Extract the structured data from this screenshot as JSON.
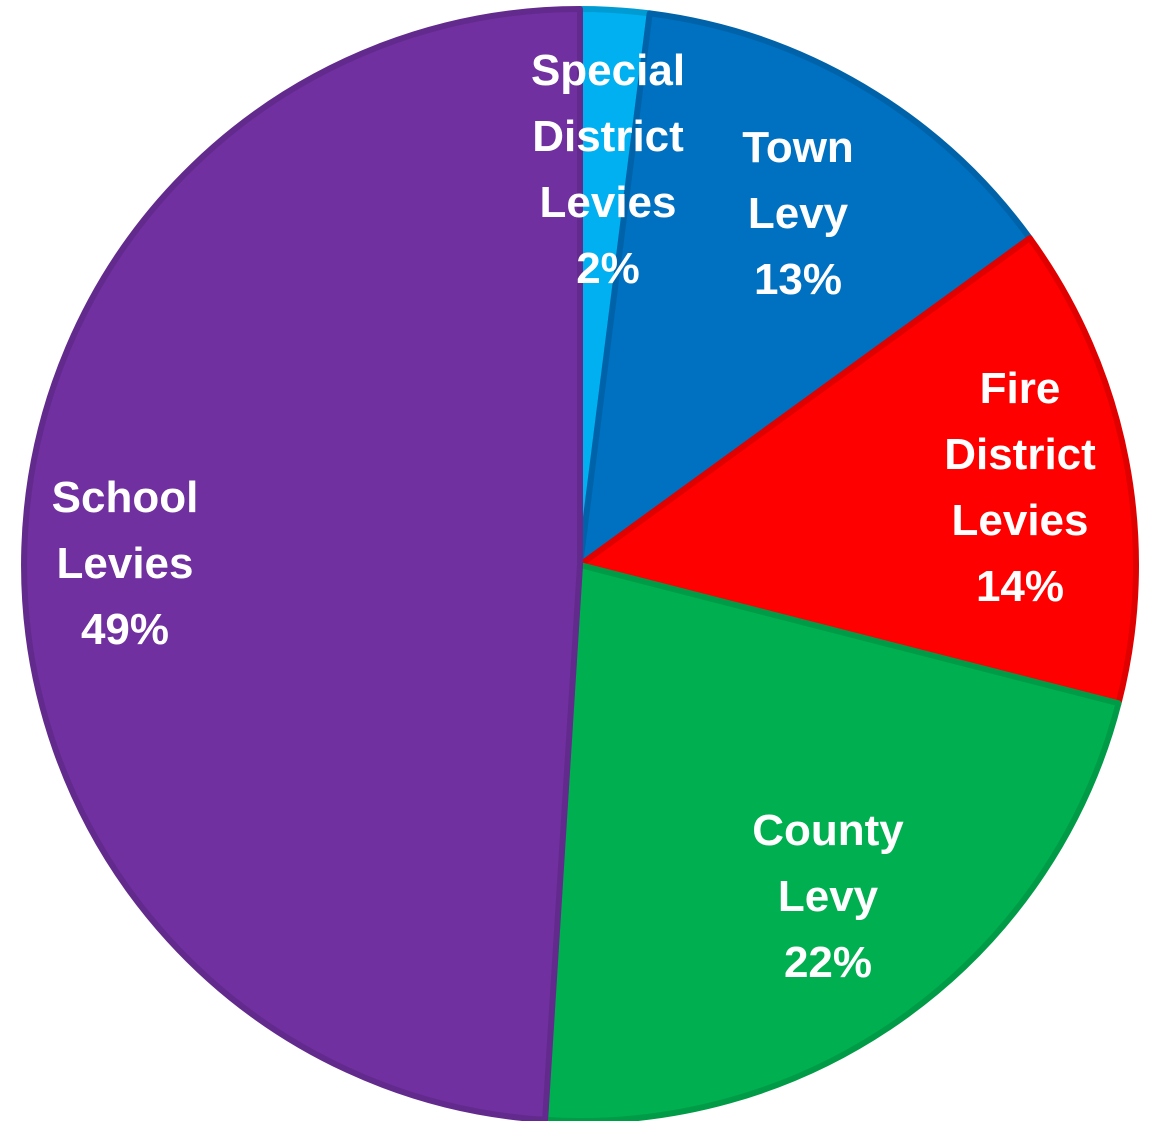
{
  "chart_data": {
    "type": "pie",
    "title": "",
    "start": "12 o'clock",
    "direction": "clockwise",
    "slices": [
      {
        "name": "Special District Levies",
        "label_lines": [
          "Special",
          "District",
          "Levies"
        ],
        "percent_label": "2%",
        "value": 2,
        "color": "#00b0f0"
      },
      {
        "name": "Town Levy",
        "label_lines": [
          "Town",
          "Levy"
        ],
        "percent_label": "13%",
        "value": 13,
        "color": "#0070c0"
      },
      {
        "name": "Fire District Levies",
        "label_lines": [
          "Fire",
          "District",
          "Levies"
        ],
        "percent_label": "14%",
        "value": 14,
        "color": "#ff0000"
      },
      {
        "name": "County Levy",
        "label_lines": [
          "County",
          "Levy"
        ],
        "percent_label": "22%",
        "value": 22,
        "color": "#00b050"
      },
      {
        "name": "School Levies",
        "label_lines": [
          "School",
          "Levies"
        ],
        "percent_label": "49%",
        "value": 49,
        "color": "#7030a0"
      }
    ]
  }
}
